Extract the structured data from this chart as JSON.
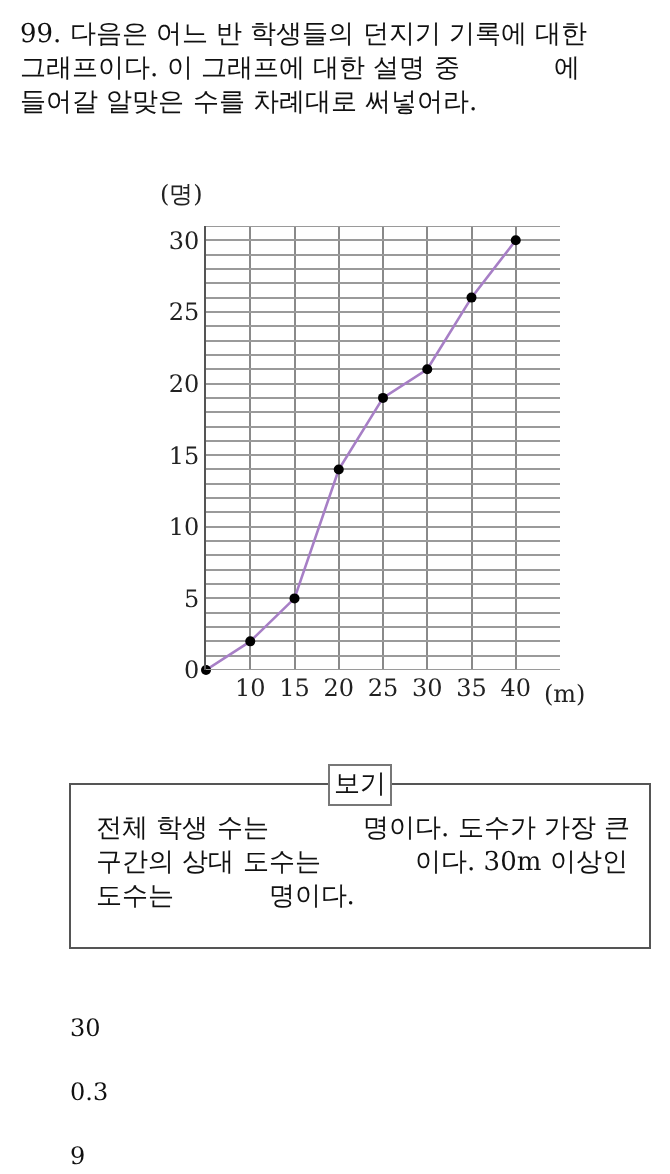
{
  "chart_data": {
    "type": "line",
    "title": "99. 다음은 어느 반 학생들의 던지기 기록에 대한 그래프이다. 이 그래프에 대한 설명 중 　　　 에 들어갈 알맞은 수를 차례대로 써넣어라.",
    "xlabel": "(m)",
    "ylabel": "(명)",
    "x": [
      5,
      10,
      15,
      20,
      25,
      30,
      35,
      40
    ],
    "series": [
      {
        "color": "#a77fc6",
        "values": [
          0,
          2,
          5,
          14,
          19,
          21,
          26,
          30
        ]
      }
    ],
    "xlim": [
      5,
      45
    ],
    "xticks": [
      10,
      15,
      20,
      25,
      30,
      35,
      40
    ],
    "ylim": [
      0,
      31
    ],
    "yticks": [
      0,
      {
        "value": 1,
        "label": null
      },
      {
        "value": 2,
        "label": null
      },
      {
        "value": 3,
        "label": null
      },
      {
        "value": 4,
        "label": null
      },
      5,
      {
        "value": 6,
        "label": null
      },
      {
        "value": 7,
        "label": null
      },
      {
        "value": 8,
        "label": null
      },
      {
        "value": 9,
        "label": null
      },
      10,
      {
        "value": 11,
        "label": null
      },
      {
        "value": 12,
        "label": null
      },
      {
        "value": 13,
        "label": null
      },
      {
        "value": 14,
        "label": null
      },
      15,
      {
        "value": 16,
        "label": null
      },
      {
        "value": 17,
        "label": null
      },
      {
        "value": 18,
        "label": null
      },
      {
        "value": 19,
        "label": null
      },
      20,
      {
        "value": 21,
        "label": null
      },
      {
        "value": 22,
        "label": null
      },
      {
        "value": 23,
        "label": null
      },
      {
        "value": 24,
        "label": null
      },
      25,
      {
        "value": 26,
        "label": null
      },
      {
        "value": 27,
        "label": null
      },
      {
        "value": 28,
        "label": null
      },
      {
        "value": 29,
        "label": null
      },
      30,
      {
        "value": 31,
        "label": null
      }
    ],
    "grid": true,
    "marker": "circle",
    "line_style": "solid",
    "annotations": [
      "보기",
      "전체 학생 수는 　　　 명이다. 도수가 가장 큰 구간의 상대 도수는 　　　 이다. 30m 이상인 도수는 　　　 명이다.",
      "30",
      "0.3",
      "9"
    ]
  }
}
